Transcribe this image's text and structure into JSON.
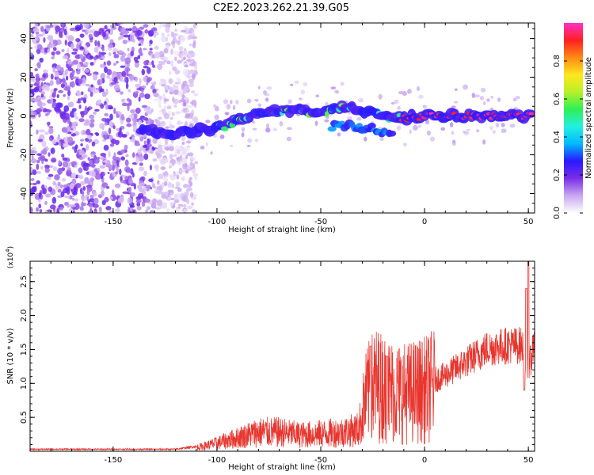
{
  "title": "C2E2.2023.262.21.39.G05",
  "colors": {
    "line": "#e8352e",
    "background": "#ffffff",
    "axis": "#000000"
  },
  "chart_data": [
    {
      "type": "heatmap",
      "xlabel": "Height of straight line (km)",
      "ylabel": "Frequency (Hz)",
      "xlim": [
        -190,
        53
      ],
      "ylim": [
        -50,
        48
      ],
      "xticks": [
        -150,
        -100,
        -50,
        0,
        50
      ],
      "yticks": [
        40,
        20,
        0,
        -20,
        -40
      ],
      "colorbar": {
        "label": "Normalized spectral amplitude",
        "range": [
          0.0,
          1.0
        ],
        "ticks": [
          "0.0",
          "0.2",
          "0.4",
          "0.6",
          "0.8"
        ],
        "colormap": [
          "#ffffff",
          "#c9a8f0",
          "#7b2ee6",
          "#2b18ff",
          "#00b8ff",
          "#24f0e0",
          "#2ef055",
          "#b8f028",
          "#ffe61e",
          "#ff8a14",
          "#ff2020",
          "#ff30c8"
        ]
      },
      "ridge": [
        [
          -135,
          -7
        ],
        [
          -120,
          -9
        ],
        [
          -100,
          -6
        ],
        [
          -90,
          -2
        ],
        [
          -75,
          2
        ],
        [
          -60,
          3
        ],
        [
          -50,
          1
        ],
        [
          -40,
          5
        ],
        [
          -30,
          3
        ],
        [
          -20,
          1
        ],
        [
          -10,
          -1
        ],
        [
          0,
          0
        ],
        [
          20,
          0
        ],
        [
          40,
          0
        ],
        [
          50,
          0
        ]
      ],
      "noise_region": [
        -190,
        -118
      ]
    },
    {
      "type": "line",
      "xlabel": "Height of straight line (km)",
      "ylabel": "SNR (10 * v/v)",
      "y_multiplier": "(x10^4)",
      "xlim": [
        -190,
        53
      ],
      "ylim": [
        0,
        2.8
      ],
      "xticks": [
        -150,
        -100,
        -50,
        0,
        50
      ],
      "yticks": [
        0.5,
        1.0,
        1.5,
        2.0,
        2.5
      ],
      "ytick_labels": [
        "0.5",
        "1.0",
        "1.5",
        "2.0",
        "2.5"
      ],
      "envelope": [
        [
          -190,
          0.03
        ],
        [
          -140,
          0.03
        ],
        [
          -120,
          0.03
        ],
        [
          -108,
          0.08
        ],
        [
          -100,
          0.15
        ],
        [
          -90,
          0.25
        ],
        [
          -80,
          0.35
        ],
        [
          -70,
          0.35
        ],
        [
          -60,
          0.3
        ],
        [
          -50,
          0.32
        ],
        [
          -40,
          0.35
        ],
        [
          -32,
          0.4
        ],
        [
          -28,
          0.9
        ],
        [
          -24,
          1.1
        ],
        [
          -18,
          1.0
        ],
        [
          -10,
          0.95
        ],
        [
          0,
          1.0
        ],
        [
          10,
          1.15
        ],
        [
          20,
          1.35
        ],
        [
          30,
          1.55
        ],
        [
          40,
          1.6
        ],
        [
          47,
          1.6
        ],
        [
          50,
          1.2
        ],
        [
          53,
          1.7
        ]
      ],
      "spikes": [
        [
          50,
          2.8
        ],
        [
          49,
          2.4
        ],
        [
          48,
          0.9
        ],
        [
          -26,
          1.55
        ],
        [
          -18,
          1.4
        ]
      ]
    }
  ]
}
